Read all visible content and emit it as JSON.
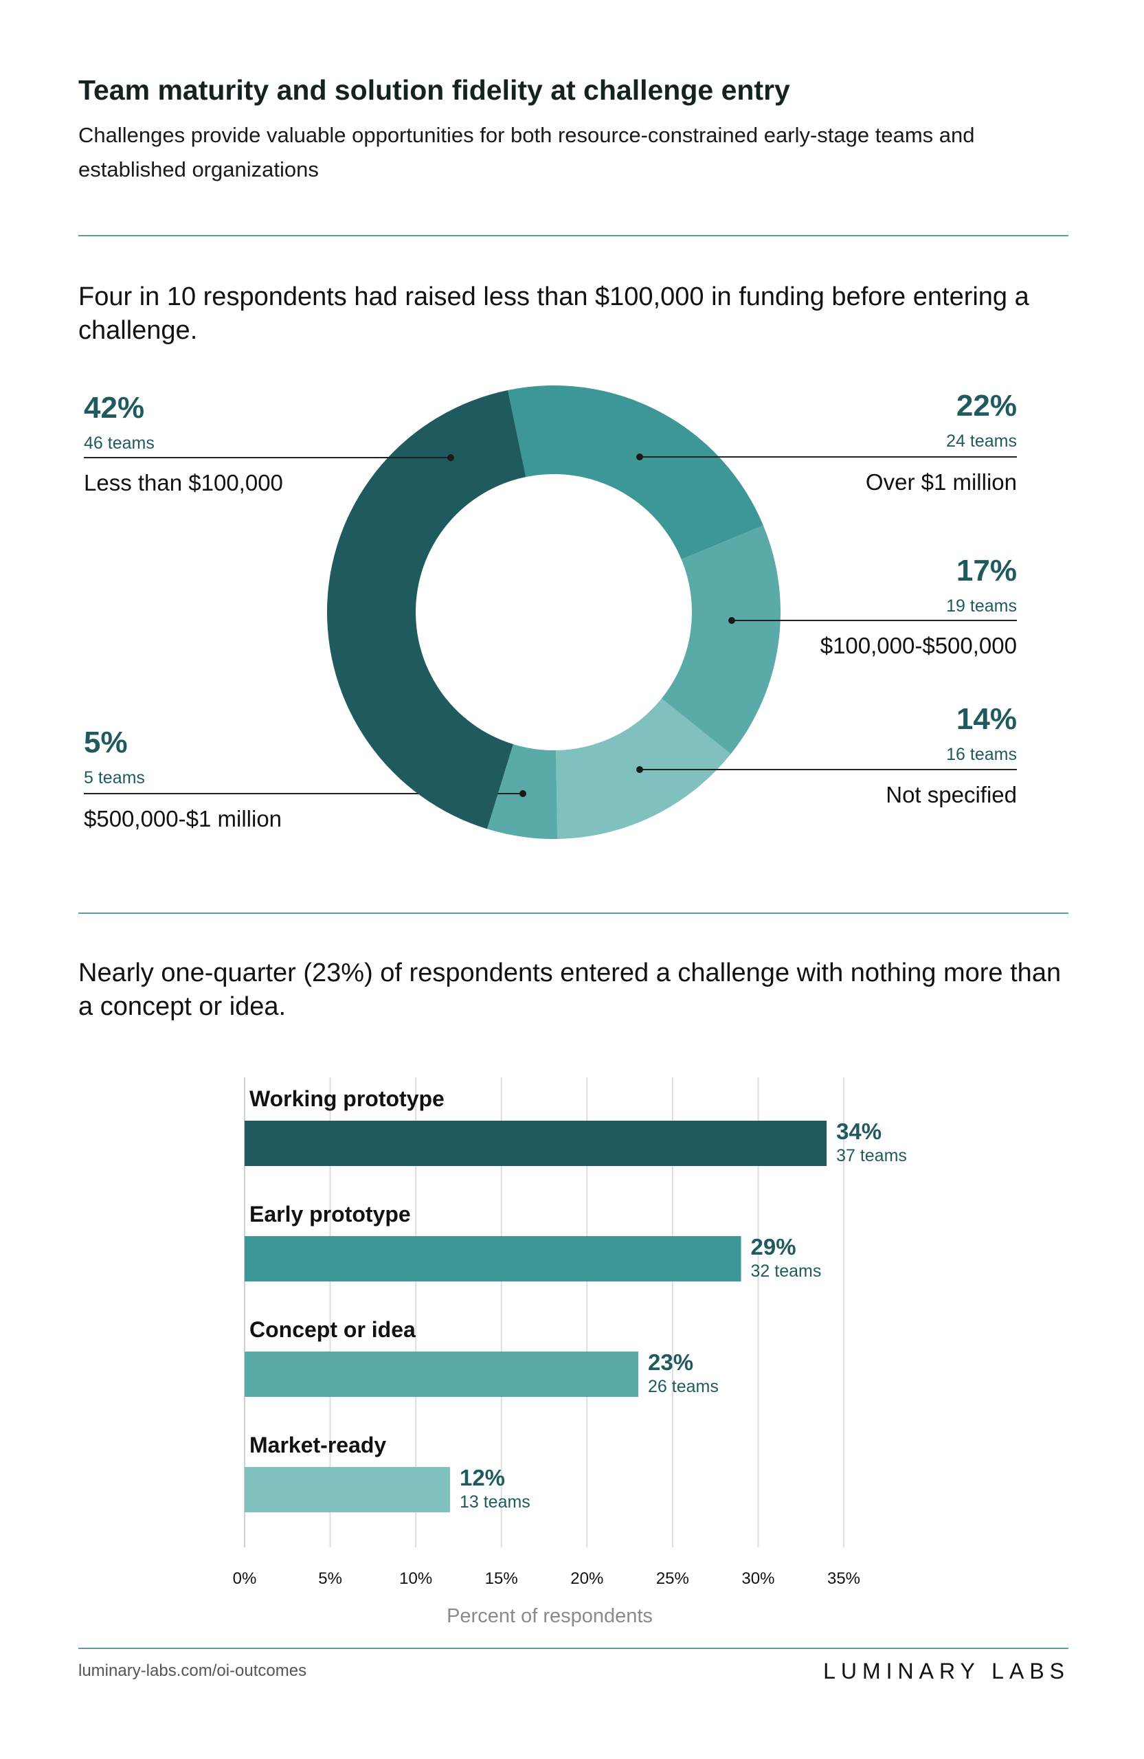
{
  "header": {
    "title": "Team maturity and solution fidelity at challenge entry",
    "subtitle": "Challenges provide valuable opportunities for both resource-constrained early-stage teams and established organizations"
  },
  "colors": {
    "dark": "#1f5b5e",
    "mid": "#3c9796",
    "light": "#5aaaa9",
    "lighter": "#80c0bf",
    "rule": "#5f9c9c"
  },
  "chart_data": [
    {
      "type": "pie",
      "donut": true,
      "title": "Four in 10 respondents had raised less than $100,000 in funding before entering a challenge.",
      "slices": [
        {
          "label": "Over $1 million",
          "percent": 22,
          "pct_label": "22%",
          "teams": "24 teams",
          "color": "#3c9796"
        },
        {
          "label": "$100,000-$500,000",
          "percent": 17,
          "pct_label": "17%",
          "teams": "19 teams",
          "color": "#5aaaa9"
        },
        {
          "label": "Not specified",
          "percent": 14,
          "pct_label": "14%",
          "teams": "16 teams",
          "color": "#80c0bf"
        },
        {
          "label": "$500,000-$1 million",
          "percent": 5,
          "pct_label": "5%",
          "teams": "5 teams",
          "color": "#5aaaa9"
        },
        {
          "label": "Less than $100,000",
          "percent": 42,
          "pct_label": "42%",
          "teams": "46 teams",
          "color": "#1f5b5e"
        }
      ]
    },
    {
      "type": "bar",
      "orientation": "horizontal",
      "title": "Nearly one-quarter (23%) of respondents entered a challenge with nothing more than a concept or idea.",
      "categories": [
        "Working prototype",
        "Early prototype",
        "Concept or idea",
        "Market-ready"
      ],
      "values": [
        34,
        29,
        23,
        12
      ],
      "value_labels": [
        "34%",
        "29%",
        "23%",
        "12%"
      ],
      "teams": [
        "37 teams",
        "32 teams",
        "26 teams",
        "13 teams"
      ],
      "colors": [
        "#1f5b5e",
        "#3c9796",
        "#5aaaa9",
        "#80c0bf"
      ],
      "xlabel": "Percent of respondents",
      "xlim": [
        0,
        35
      ],
      "xticks": [
        "0%",
        "5%",
        "10%",
        "15%",
        "20%",
        "25%",
        "30%",
        "35%"
      ],
      "grid": true
    }
  ],
  "footer": {
    "url": "luminary-labs.com/oi-outcomes",
    "logo": "LUMINARY LABS"
  }
}
